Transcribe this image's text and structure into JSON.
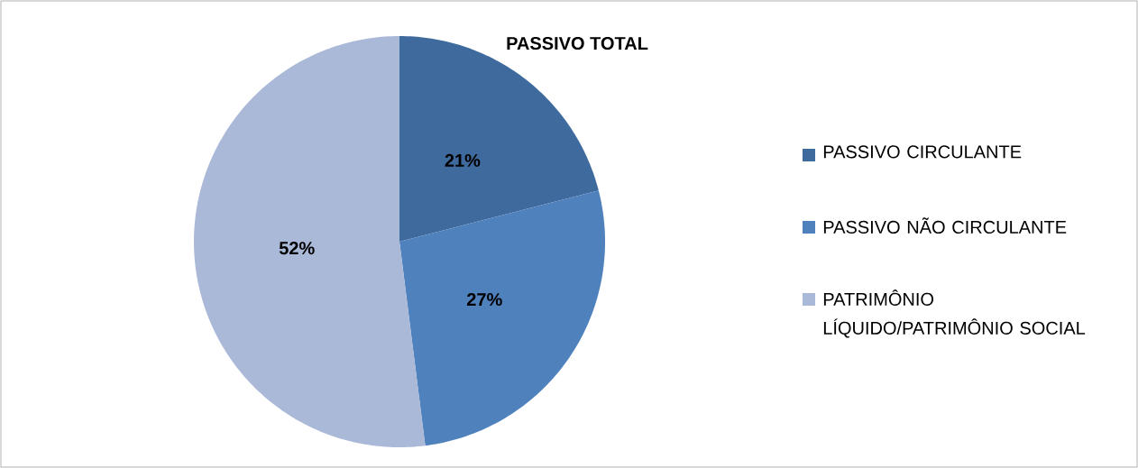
{
  "chart_data": {
    "type": "pie",
    "title": "PASSIVO TOTAL",
    "categories": [
      "PASSIVO CIRCULANTE",
      "PASSIVO NÃO CIRCULANTE",
      "PATRIMÔNIO LÍQUIDO/PATRIMÔNIO SOCIAL"
    ],
    "values": [
      21,
      27,
      52
    ],
    "value_labels": [
      "21%",
      "27%",
      "52%"
    ],
    "colors": [
      "#3f6a9d",
      "#4f81bd",
      "#aab9d8"
    ],
    "legend": "right"
  }
}
